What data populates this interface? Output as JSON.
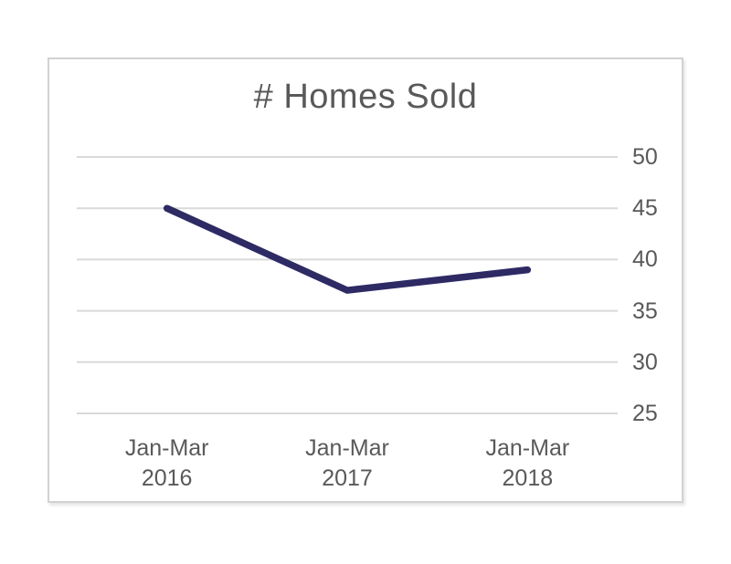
{
  "chart_data": {
    "type": "line",
    "title": "# Homes Sold",
    "categories": [
      {
        "top": "Jan-Mar",
        "bottom": "2016"
      },
      {
        "top": "Jan-Mar",
        "bottom": "2017"
      },
      {
        "top": "Jan-Mar",
        "bottom": "2018"
      }
    ],
    "series": [
      {
        "name": "# Homes Sold",
        "values": [
          45,
          37,
          39
        ]
      }
    ],
    "ylim": [
      25,
      50
    ],
    "yticks": [
      50,
      45,
      40,
      35,
      30,
      25
    ],
    "ytick_side": "right",
    "xlabel": "",
    "ylabel": "",
    "grid": true,
    "legend": "none",
    "colors": {
      "line": "#2d2a64",
      "gridline": "#d9d9d9",
      "text": "#595959",
      "card_border": "#d2d2d2",
      "background": "#ffffff"
    }
  }
}
